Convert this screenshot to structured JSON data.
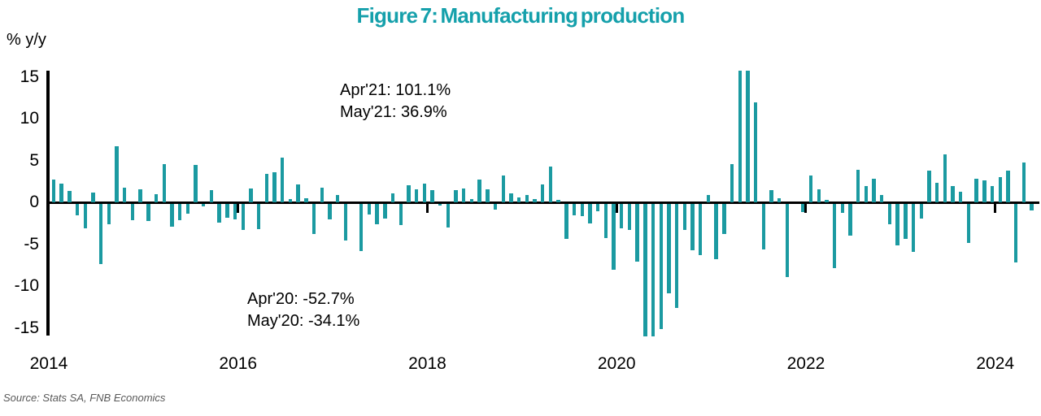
{
  "title": "Figure 7: Manufacturing production",
  "y_axis_unit": "% y/y",
  "source": "Source: Stats SA, FNB Economics",
  "annotations": {
    "top": [
      "Apr'21: 101.1%",
      "May'21: 36.9%"
    ],
    "bottom": [
      "Apr'20: -52.7%",
      "May'20: -34.1%"
    ]
  },
  "colors": {
    "bar": "#1b9aa1",
    "title": "#15a0ab",
    "axis": "#000000",
    "source_text": "#595959"
  },
  "chart_data": {
    "type": "bar",
    "title": "Figure 7: Manufacturing production",
    "ylabel": "% y/y",
    "xlabel": "",
    "grid": false,
    "legend": "none",
    "y_ticks": [
      15,
      10,
      5,
      0,
      -5,
      -10,
      -15
    ],
    "y_display_range": [
      -15.8,
      15.8
    ],
    "clipped_points": [
      {
        "month": "2020-04",
        "value": -52.7
      },
      {
        "month": "2020-05",
        "value": -34.1
      },
      {
        "month": "2021-04",
        "value": 101.1
      },
      {
        "month": "2021-05",
        "value": 36.9
      }
    ],
    "x_tick_labels": [
      "2014",
      "2016",
      "2018",
      "2020",
      "2022",
      "2024"
    ],
    "months": [
      "2014-01",
      "2014-02",
      "2014-03",
      "2014-04",
      "2014-05",
      "2014-06",
      "2014-07",
      "2014-08",
      "2014-09",
      "2014-10",
      "2014-11",
      "2014-12",
      "2015-01",
      "2015-02",
      "2015-03",
      "2015-04",
      "2015-05",
      "2015-06",
      "2015-07",
      "2015-08",
      "2015-09",
      "2015-10",
      "2015-11",
      "2015-12",
      "2016-01",
      "2016-02",
      "2016-03",
      "2016-04",
      "2016-05",
      "2016-06",
      "2016-07",
      "2016-08",
      "2016-09",
      "2016-10",
      "2016-11",
      "2016-12",
      "2017-01",
      "2017-02",
      "2017-03",
      "2017-04",
      "2017-05",
      "2017-06",
      "2017-07",
      "2017-08",
      "2017-09",
      "2017-10",
      "2017-11",
      "2017-12",
      "2018-01",
      "2018-02",
      "2018-03",
      "2018-04",
      "2018-05",
      "2018-06",
      "2018-07",
      "2018-08",
      "2018-09",
      "2018-10",
      "2018-11",
      "2018-12",
      "2019-01",
      "2019-02",
      "2019-03",
      "2019-04",
      "2019-05",
      "2019-06",
      "2019-07",
      "2019-08",
      "2019-09",
      "2019-10",
      "2019-11",
      "2019-12",
      "2020-01",
      "2020-02",
      "2020-03",
      "2020-04",
      "2020-05",
      "2020-06",
      "2020-07",
      "2020-08",
      "2020-09",
      "2020-10",
      "2020-11",
      "2020-12",
      "2021-01",
      "2021-02",
      "2021-03",
      "2021-04",
      "2021-05",
      "2021-06",
      "2021-07",
      "2021-08",
      "2021-09",
      "2021-10",
      "2021-11",
      "2021-12",
      "2022-01",
      "2022-02",
      "2022-03",
      "2022-04",
      "2022-05",
      "2022-06",
      "2022-07",
      "2022-08",
      "2022-09",
      "2022-10",
      "2022-11",
      "2022-12",
      "2023-01",
      "2023-02",
      "2023-03",
      "2023-04",
      "2023-05",
      "2023-06",
      "2023-07",
      "2023-08",
      "2023-09",
      "2023-10",
      "2023-11",
      "2023-12",
      "2024-01",
      "2024-02",
      "2024-03",
      "2024-04",
      "2024-05"
    ],
    "values": [
      2.7,
      2.3,
      1.4,
      -1.4,
      -2.9,
      1.2,
      -7.2,
      -2.4,
      6.7,
      1.8,
      -1.9,
      1.6,
      -2.0,
      1.0,
      4.6,
      -2.7,
      -1.9,
      -1.2,
      4.5,
      -0.3,
      1.5,
      -2.2,
      -1.6,
      -1.8,
      -3.1,
      1.7,
      -3.0,
      3.4,
      3.6,
      5.4,
      0.4,
      2.2,
      0.5,
      -3.6,
      1.8,
      -1.8,
      0.9,
      -4.4,
      0.0,
      -5.6,
      -1.3,
      -2.4,
      -1.7,
      1.1,
      -2.5,
      2.1,
      1.6,
      2.3,
      1.5,
      -0.2,
      -2.8,
      1.5,
      1.7,
      0.4,
      2.7,
      1.6,
      -0.7,
      3.2,
      1.1,
      0.6,
      0.9,
      0.4,
      2.2,
      4.3,
      0.3,
      -4.2,
      -1.4,
      -1.5,
      -2.3,
      -0.9,
      -4.1,
      -7.9,
      -2.9,
      -3.1,
      -6.9,
      -52.7,
      -34.1,
      -14.9,
      -10.7,
      -12.4,
      -3.1,
      -5.5,
      -6.1,
      0.9,
      -6.6,
      -3.6,
      4.6,
      101.1,
      36.9,
      12.0,
      -5.4,
      1.5,
      0.5,
      -8.7,
      0.0,
      -1.0,
      3.2,
      1.6,
      0.3,
      -7.7,
      -1.1,
      -3.8,
      3.9,
      2.0,
      2.8,
      0.9,
      -2.4,
      -4.9,
      -4.2,
      -5.7,
      -1.7,
      3.8,
      2.4,
      5.8,
      2.0,
      1.3,
      -4.7,
      2.8,
      2.6,
      2.0,
      3.0,
      3.8,
      -7.0,
      4.8,
      -0.8
    ]
  }
}
